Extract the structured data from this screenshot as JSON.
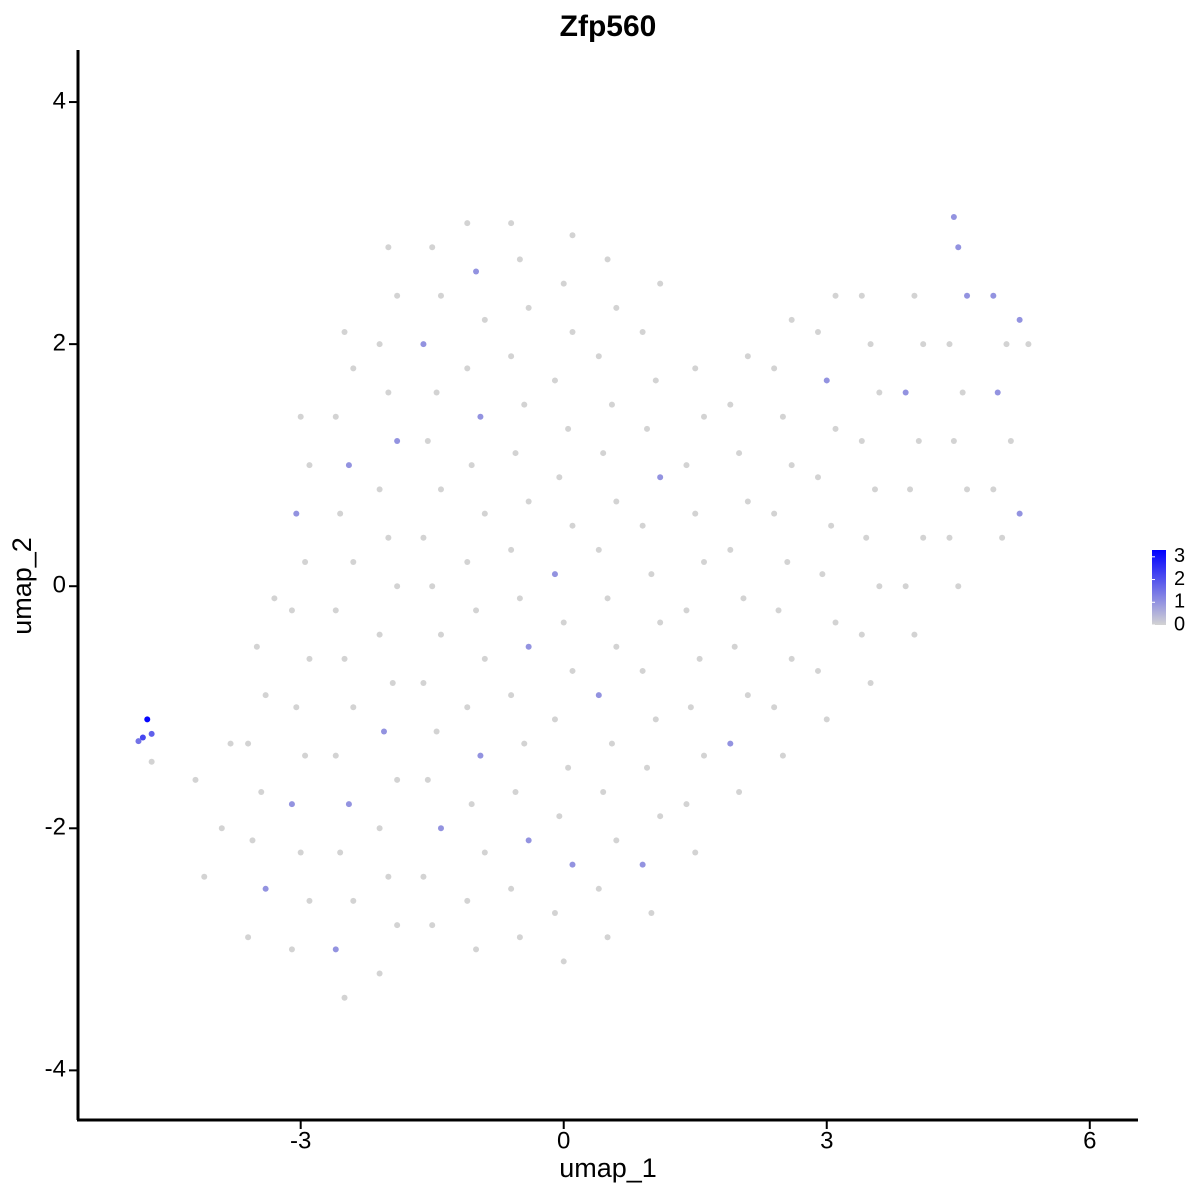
{
  "chart_data": {
    "type": "scatter",
    "title": "Zfp560",
    "x_label": "umap_1",
    "y_label": "umap_2",
    "xlim": [
      -5.54,
      6.55
    ],
    "ylim": [
      -4.41,
      4.43
    ],
    "xticks": [
      -3,
      0,
      3,
      6
    ],
    "yticks": [
      -4,
      -2,
      0,
      2,
      4
    ],
    "point_colors": [
      "#d3d3d3",
      "#0000ff"
    ],
    "colorbar": {
      "lim": [
        0,
        3.3
      ],
      "ticks": [
        0,
        1,
        2,
        3
      ]
    },
    "x": [
      -4.1,
      -3.9,
      -4.2,
      -3.8,
      -3.6,
      -3.4,
      -3.55,
      -3.45,
      -3.6,
      -3.4,
      -3.5,
      -3.3,
      -3.1,
      -2.9,
      -3.0,
      -3.1,
      -2.95,
      -3.05,
      -2.9,
      -3.1,
      -2.95,
      -3.05,
      -2.9,
      -3.0,
      -2.5,
      -2.6,
      -2.4,
      -2.55,
      -2.45,
      -2.6,
      -2.4,
      -2.5,
      -2.6,
      -2.4,
      -2.55,
      -2.45,
      -2.6,
      -2.4,
      -2.5,
      -2.1,
      -1.9,
      -2.0,
      -2.1,
      -1.9,
      -2.05,
      -1.95,
      -2.1,
      -1.9,
      -2.0,
      -2.1,
      -1.9,
      -2.0,
      -2.1,
      -1.9,
      -2.0,
      -1.5,
      -1.6,
      -1.4,
      -1.55,
      -1.45,
      -1.6,
      -1.4,
      -1.5,
      -1.6,
      -1.4,
      -1.55,
      -1.45,
      -1.6,
      -1.4,
      -1.5,
      -1.0,
      -1.1,
      -0.9,
      -1.05,
      -0.95,
      -1.1,
      -0.9,
      -1.0,
      -1.1,
      -0.9,
      -1.05,
      -0.95,
      -1.1,
      -0.9,
      -1.0,
      -1.1,
      -0.5,
      -0.6,
      -0.4,
      -0.55,
      -0.45,
      -0.6,
      -0.4,
      -0.5,
      -0.6,
      -0.4,
      -0.55,
      -0.45,
      -0.6,
      -0.4,
      -0.5,
      -0.6,
      0.0,
      -0.1,
      0.1,
      -0.05,
      0.05,
      -0.1,
      0.1,
      0.0,
      -0.1,
      0.1,
      -0.05,
      0.05,
      -0.1,
      0.1,
      0.0,
      0.1,
      0.5,
      0.4,
      0.6,
      0.45,
      0.55,
      0.4,
      0.6,
      0.5,
      0.4,
      0.6,
      0.45,
      0.55,
      0.4,
      0.6,
      0.5,
      1.0,
      0.9,
      1.1,
      0.95,
      1.05,
      0.9,
      1.1,
      1.0,
      0.9,
      1.1,
      0.95,
      1.05,
      0.9,
      1.1,
      1.5,
      1.4,
      1.6,
      1.45,
      1.55,
      1.4,
      1.6,
      1.5,
      1.4,
      1.6,
      1.5,
      2.0,
      1.9,
      2.1,
      1.95,
      2.05,
      1.9,
      2.1,
      2.0,
      1.9,
      2.1,
      2.5,
      2.4,
      2.6,
      2.45,
      2.55,
      2.4,
      2.6,
      2.5,
      2.4,
      2.6,
      3.0,
      2.9,
      3.1,
      2.95,
      3.05,
      2.9,
      3.1,
      3.0,
      2.9,
      3.1,
      3.5,
      3.4,
      3.6,
      3.45,
      3.55,
      3.4,
      3.6,
      3.5,
      3.4,
      4.0,
      3.9,
      4.1,
      3.95,
      4.05,
      3.9,
      4.1,
      4.0,
      4.5,
      4.4,
      4.6,
      4.45,
      4.55,
      4.4,
      4.6,
      4.5,
      4.45,
      5.0,
      4.9,
      5.1,
      4.95,
      5.05,
      4.9,
      5.2,
      5.3,
      5.2,
      -4.75,
      -4.8,
      -4.7,
      -4.85,
      -4.7
    ],
    "values": [
      -2.4,
      -2.0,
      -1.6,
      -1.3,
      -2.9,
      -2.5,
      -2.1,
      -1.7,
      -1.3,
      -0.9,
      -0.5,
      -0.1,
      -3.0,
      -2.6,
      -2.2,
      -1.8,
      -1.4,
      -1.0,
      -0.6,
      -0.2,
      0.2,
      0.6,
      1.0,
      1.4,
      -3.4,
      -3.0,
      -2.6,
      -2.2,
      -1.8,
      -1.4,
      -1.0,
      -0.6,
      -0.2,
      0.2,
      0.6,
      1.0,
      1.4,
      1.8,
      2.1,
      -3.2,
      -2.8,
      -2.4,
      -2.0,
      -1.6,
      -1.2,
      -0.8,
      -0.4,
      0.0,
      0.4,
      0.8,
      1.2,
      1.6,
      2.0,
      2.4,
      2.8,
      -2.8,
      -2.4,
      -2.0,
      -1.6,
      -1.2,
      -0.8,
      -0.4,
      0.0,
      0.4,
      0.8,
      1.2,
      1.6,
      2.0,
      2.4,
      2.8,
      -3.0,
      -2.6,
      -2.2,
      -1.8,
      -1.4,
      -1.0,
      -0.6,
      -0.2,
      0.2,
      0.6,
      1.0,
      1.4,
      1.8,
      2.2,
      2.6,
      3.0,
      -2.9,
      -2.5,
      -2.1,
      -1.7,
      -1.3,
      -0.9,
      -0.5,
      -0.1,
      0.3,
      0.7,
      1.1,
      1.5,
      1.9,
      2.3,
      2.7,
      3.0,
      -3.1,
      -2.7,
      -2.3,
      -1.9,
      -1.5,
      -1.1,
      -0.7,
      -0.3,
      0.1,
      0.5,
      0.9,
      1.3,
      1.7,
      2.1,
      2.5,
      2.9,
      -2.9,
      -2.5,
      -2.1,
      -1.7,
      -1.3,
      -0.9,
      -0.5,
      -0.1,
      0.3,
      0.7,
      1.1,
      1.5,
      1.9,
      2.3,
      2.7,
      -2.7,
      -2.3,
      -1.9,
      -1.5,
      -1.1,
      -0.7,
      -0.3,
      0.1,
      0.5,
      0.9,
      1.3,
      1.7,
      2.1,
      2.5,
      -2.2,
      -1.8,
      -1.4,
      -1.0,
      -0.6,
      -0.2,
      0.2,
      0.6,
      1.0,
      1.4,
      1.8,
      -1.7,
      -1.3,
      -0.9,
      -0.5,
      -0.1,
      0.3,
      0.7,
      1.1,
      1.5,
      1.9,
      -1.4,
      -1.0,
      -0.6,
      -0.2,
      0.2,
      0.6,
      1.0,
      1.4,
      1.8,
      2.2,
      -1.1,
      -0.7,
      -0.3,
      0.1,
      0.5,
      0.9,
      1.3,
      1.7,
      2.1,
      2.4,
      -0.8,
      -0.4,
      0.0,
      0.4,
      0.8,
      1.2,
      1.6,
      2.0,
      2.4,
      -0.4,
      0.0,
      0.4,
      0.8,
      1.2,
      1.6,
      2.0,
      2.4,
      0.0,
      0.4,
      0.8,
      1.2,
      1.6,
      2.0,
      2.4,
      2.8,
      3.05,
      0.4,
      0.8,
      1.2,
      1.6,
      2.0,
      2.4,
      2.2,
      2.0,
      0.6,
      -1.1,
      -1.25,
      -1.22,
      -1.28,
      -1.45
    ],
    "z": [
      0,
      0,
      0,
      0,
      0,
      1,
      0,
      0,
      0,
      0,
      0,
      0,
      0,
      0,
      0,
      1,
      0,
      0,
      0,
      0,
      0,
      1,
      0,
      0,
      0,
      1,
      0,
      0,
      1,
      0,
      0,
      0,
      0,
      0,
      0,
      1,
      0,
      0,
      0,
      0,
      0,
      0,
      0,
      0,
      1,
      0,
      0,
      0,
      0,
      0,
      1,
      0,
      0,
      0,
      0,
      0,
      0,
      1,
      0,
      0,
      0,
      0,
      0,
      0,
      0,
      0,
      0,
      1,
      0,
      0,
      0,
      0,
      0,
      0,
      1,
      0,
      0,
      0,
      0,
      0,
      0,
      1,
      0,
      0,
      1,
      0,
      0,
      0,
      1,
      0,
      0,
      0,
      1,
      0,
      0,
      0,
      0,
      0,
      0,
      0,
      0,
      0,
      0,
      0,
      1,
      0,
      0,
      0,
      0,
      0,
      1,
      0,
      0,
      0,
      0,
      0,
      0,
      0,
      0,
      0,
      0,
      0,
      0,
      1,
      0,
      0,
      0,
      0,
      0,
      0,
      0,
      0,
      0,
      0,
      1,
      0,
      0,
      0,
      0,
      0,
      0,
      0,
      1,
      0,
      0,
      0,
      0,
      0,
      0,
      0,
      0,
      0,
      0,
      0,
      0,
      0,
      0,
      0,
      0,
      1,
      0,
      0,
      0,
      0,
      0,
      0,
      0,
      0,
      0,
      0,
      0,
      0,
      0,
      0,
      0,
      0,
      0,
      0,
      0,
      0,
      0,
      0,
      0,
      0,
      0,
      1,
      0,
      0,
      0,
      0,
      0,
      0,
      0,
      0,
      0,
      0,
      0,
      0,
      0,
      0,
      0,
      0,
      1,
      0,
      0,
      0,
      0,
      0,
      0,
      0,
      0,
      1,
      1,
      1,
      0,
      0,
      0,
      1,
      0,
      1,
      1,
      0,
      1,
      3.2,
      2.2,
      1.8,
      1.5,
      0
    ]
  }
}
